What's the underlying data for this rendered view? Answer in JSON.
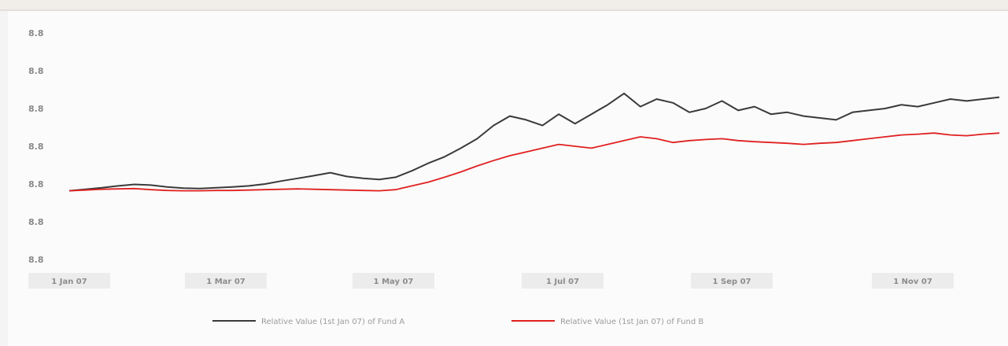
{
  "chart_data": {
    "type": "line",
    "y_ticks": [
      "8.8",
      "8.8",
      "8.8",
      "8.8",
      "8.8",
      "8.8",
      "8.8"
    ],
    "x_tick_labels": [
      "1 Jan 07",
      "1 Mar 07",
      "1 May 07",
      "1 Jul 07",
      "1 Sep 07",
      "1 Nov 07"
    ],
    "ylim": [
      0,
      6
    ],
    "series": [
      {
        "name": "Relative Value (1st Jan 07) of Fund A",
        "color": "#3a3a3a",
        "values": [
          1.82,
          1.86,
          1.9,
          1.95,
          1.99,
          1.97,
          1.92,
          1.89,
          1.88,
          1.9,
          1.92,
          1.95,
          2.0,
          2.08,
          2.15,
          2.22,
          2.3,
          2.2,
          2.15,
          2.12,
          2.18,
          2.35,
          2.55,
          2.72,
          2.95,
          3.2,
          3.55,
          3.8,
          3.7,
          3.55,
          3.85,
          3.6,
          3.85,
          4.1,
          4.4,
          4.05,
          4.25,
          4.15,
          3.9,
          4.0,
          4.2,
          3.95,
          4.05,
          3.85,
          3.9,
          3.8,
          3.75,
          3.7,
          3.9,
          3.95,
          4.0,
          4.1,
          4.05,
          4.15,
          4.25,
          4.2,
          4.25,
          4.3
        ]
      },
      {
        "name": "Relative Value (1st Jan 07) of Fund B",
        "color": "#e02020",
        "values": [
          1.82,
          1.84,
          1.86,
          1.87,
          1.88,
          1.85,
          1.83,
          1.82,
          1.82,
          1.83,
          1.83,
          1.84,
          1.85,
          1.86,
          1.87,
          1.86,
          1.85,
          1.84,
          1.83,
          1.82,
          1.85,
          1.95,
          2.05,
          2.18,
          2.32,
          2.48,
          2.62,
          2.75,
          2.85,
          2.95,
          3.05,
          3.0,
          2.95,
          3.05,
          3.15,
          3.25,
          3.2,
          3.1,
          3.15,
          3.18,
          3.2,
          3.15,
          3.12,
          3.1,
          3.08,
          3.05,
          3.08,
          3.1,
          3.15,
          3.2,
          3.25,
          3.3,
          3.32,
          3.35,
          3.3,
          3.28,
          3.32,
          3.35
        ]
      }
    ],
    "legend_position": "bottom",
    "grid": false
  }
}
